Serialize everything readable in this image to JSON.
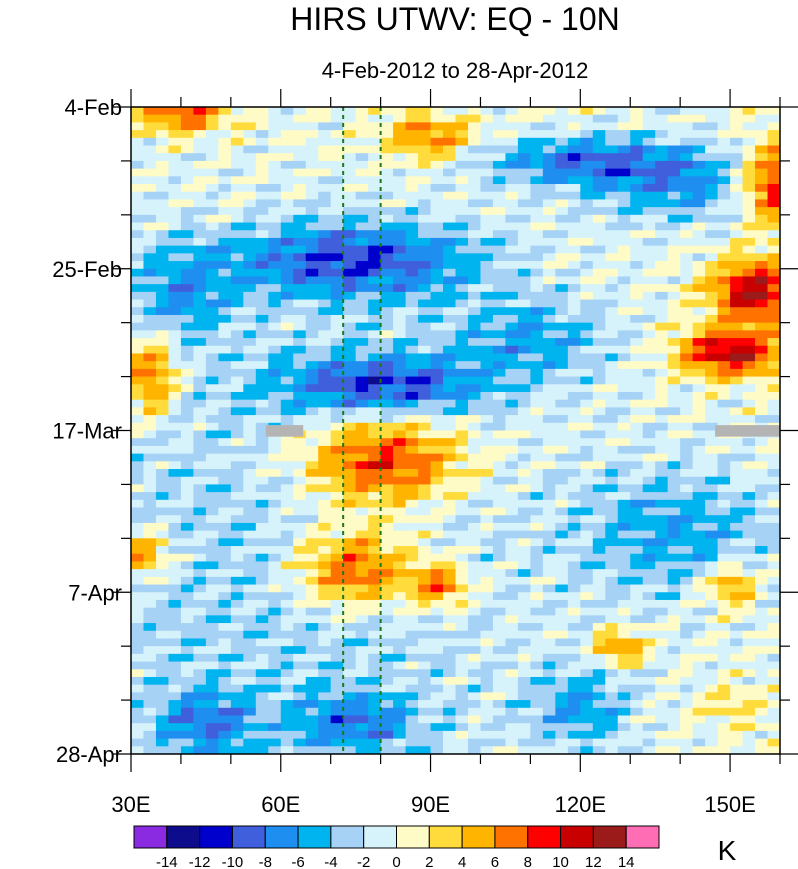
{
  "chart_data": {
    "type": "heatmap",
    "title": "HIRS UTWV: EQ - 10N",
    "subtitle": "4-Feb-2012 to 28-Apr-2012",
    "x_axis": {
      "range": [
        30,
        160
      ],
      "ticks": [
        30,
        60,
        90,
        120,
        150
      ],
      "tick_labels": [
        "30E",
        "60E",
        "90E",
        "120E",
        "150E"
      ],
      "minor_step": 10
    },
    "y_axis": {
      "range_days": [
        0,
        84
      ],
      "ticks_days": [
        0,
        21,
        42,
        63,
        84
      ],
      "tick_labels": [
        "4-Feb",
        "25-Feb",
        "17-Mar",
        "7-Apr",
        "28-Apr"
      ],
      "minor_step_days": 7,
      "direction": "time increases downward"
    },
    "reference_lines_lon": [
      72.5,
      80
    ],
    "colorbar": {
      "units": "K",
      "levels": [
        -14,
        -12,
        -10,
        -8,
        -6,
        -4,
        -2,
        0,
        2,
        4,
        6,
        8,
        10,
        12,
        14
      ],
      "level_labels": [
        "-14",
        "-12",
        "-10",
        "-8",
        "-6",
        "-4",
        "-2",
        "0",
        "2",
        "4",
        "6",
        "8",
        "10",
        "12",
        "14"
      ],
      "colors": [
        "#8a2be2",
        "#0c0c8c",
        "#0000cd",
        "#3f5fdd",
        "#1e8ff0",
        "#00b4f0",
        "#a6d2f6",
        "#d6f3fb",
        "#fffbc6",
        "#ffdc3c",
        "#ffb400",
        "#ff7200",
        "#ff0000",
        "#c80000",
        "#9b1b1b",
        "#ff6eb4"
      ]
    },
    "missing_color": "#b4b4b4",
    "grid": false
  }
}
